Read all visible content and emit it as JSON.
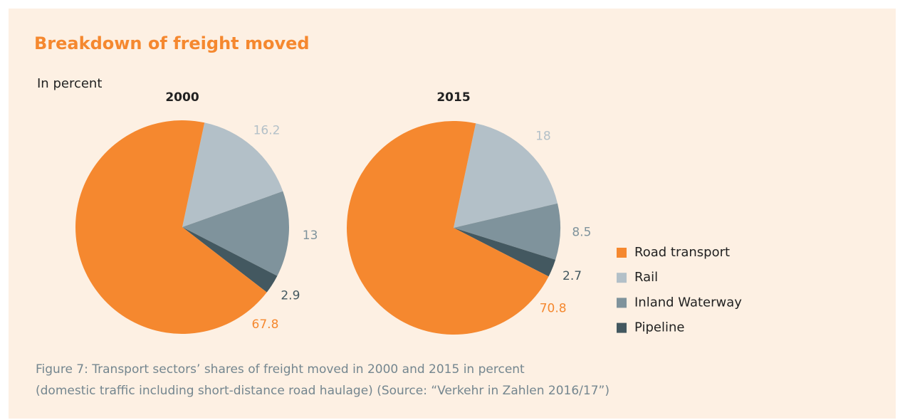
{
  "title": "Breakdown of freight moved",
  "subtitle": "In percent",
  "caption": [
    "Figure 7: Transport sectors’ shares of freight moved in 2000 and 2015 in percent",
    "(domestic traffic including short-distance road haulage) (Source: “Verkehr in Zahlen 2016/17”)"
  ],
  "chart_data": [
    {
      "type": "pie",
      "title": "2000",
      "categories": [
        "Road transport",
        "Rail",
        "Inland Waterway",
        "Pipeline"
      ],
      "values": [
        67.8,
        16.2,
        13,
        2.9
      ],
      "colors": [
        "#f5882f",
        "#b3c0c8",
        "#7f939c",
        "#435860"
      ]
    },
    {
      "type": "pie",
      "title": "2015",
      "categories": [
        "Road transport",
        "Rail",
        "Inland Waterway",
        "Pipeline"
      ],
      "values": [
        70.8,
        18,
        8.5,
        2.7
      ],
      "colors": [
        "#f5882f",
        "#b3c0c8",
        "#7f939c",
        "#435860"
      ]
    }
  ]
}
